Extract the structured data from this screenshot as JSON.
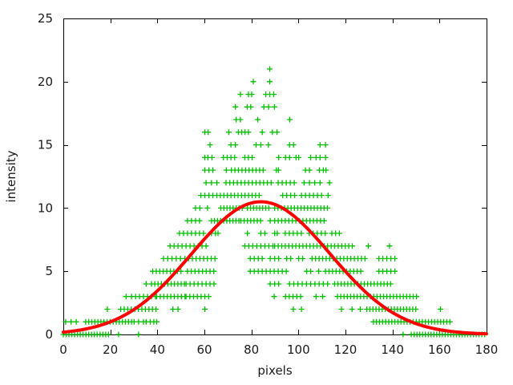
{
  "chart_data": {
    "type": "scatter",
    "title": "",
    "xlabel": "pixels",
    "ylabel": "intensity",
    "xlim": [
      0,
      180
    ],
    "ylim": [
      0,
      25
    ],
    "xticks": [
      0,
      20,
      40,
      60,
      80,
      100,
      120,
      140,
      160,
      180
    ],
    "yticks": [
      0,
      5,
      10,
      15,
      20,
      25
    ],
    "grid": false,
    "legend": "none",
    "background": "#ffffff",
    "border_color": "#000000",
    "tick_label_color": "#1a1a1a",
    "segment_format": "in x_segments a plain number is one marker x; [start,end,step] is an inclusive run of markers at that intensity",
    "series": [
      {
        "role": "scatter-points",
        "marker": "plus",
        "color": "#00c000",
        "rows": [
          {
            "y": 0,
            "x_segments": [
              [
                0,
                19.7,
                1.2
              ],
              23.5,
              32.0,
              144.5,
              [
                148.0,
                179.5,
                1.2
              ]
            ]
          },
          {
            "y": 1,
            "x_segments": [
              1.0,
              3.3,
              5.5,
              [
                9.5,
                29.0,
                1.3
              ],
              30.1,
              32.0,
              34.1,
              35.2,
              37.0,
              38.5,
              39.7,
              [
                131.9,
                164.8,
                1.3
              ]
            ]
          },
          {
            "y": 2,
            "x_segments": [
              18.7,
              [
                24.4,
                39.7,
                1.5
              ],
              46.6,
              48.8,
              60.2,
              97.8,
              101.3,
              118.3,
              122.8,
              126.3,
              [
                129.1,
                150.1,
                1.3
              ],
              160.4
            ]
          },
          {
            "y": 3,
            "x_segments": [
              26.7,
              [
                29.0,
                39.2,
                1.7
              ],
              [
                39.7,
                51.7,
                1.5
              ],
              [
                52.2,
                61.9,
                1.6
              ],
              89.7,
              [
                94.5,
                102.4,
                1.6
              ],
              107.5,
              110.3,
              [
                116.6,
                151.2,
                1.4
              ]
            ]
          },
          {
            "y": 4,
            "x_segments": [
              35.2,
              [
                37.5,
                51.7,
                1.4
              ],
              [
                52.2,
                64.1,
                1.7
              ],
              88.0,
              89.9,
              91.6,
              [
                96.2,
                113.8,
                1.8
              ],
              [
                115.4,
                140.4,
                1.4
              ]
            ]
          },
          {
            "y": 5,
            "x_segments": [
              [
                38.0,
                51.1,
                1.5
              ],
              [
                52.8,
                64.1,
                1.6
              ],
              [
                79.5,
                89.7,
                1.7
              ],
              [
                91.4,
                95.0,
                1.7
              ],
              103.5,
              105.2,
              108.6,
              [
                111.5,
                127.4,
                1.5
              ],
              [
                134.2,
                141.0,
                1.7
              ]
            ]
          },
          {
            "y": 6,
            "x_segments": [
              [
                42.6,
                50.0,
                1.8
              ],
              [
                51.7,
                65.8,
                1.6
              ],
              [
                79.5,
                84.6,
                1.7
              ],
              88.0,
              89.9,
              91.6,
              95.0,
              96.7,
              100.1,
              101.8,
              [
                105.8,
                129.7,
                1.5
              ],
              [
                134.2,
                141.0,
                1.7
              ]
            ]
          },
          {
            "y": 7,
            "x_segments": [
              [
                45.4,
                60.7,
                1.7
              ],
              [
                77.2,
                89.1,
                1.7
              ],
              [
                89.9,
                124.0,
                1.5
              ],
              129.7,
              138.7
            ]
          },
          {
            "y": 8,
            "x_segments": [
              [
                49.4,
                59.6,
                1.7
              ],
              63.0,
              64.7,
              65.8,
              78.3,
              84.0,
              85.7,
              89.9,
              91.0,
              [
                94.4,
                101.2,
                1.7
              ],
              [
                104.6,
                111.4,
                1.7
              ],
              [
                114.2,
                118.8,
                1.6
              ]
            ]
          },
          {
            "y": 9,
            "x_segments": [
              [
                52.8,
                57.9,
                1.7
              ],
              [
                63.0,
                74.9,
                1.3
              ],
              [
                75.5,
                84.0,
                1.4
              ],
              88.0,
              [
                89.9,
                111.0,
                1.5
              ]
            ]
          },
          {
            "y": 10,
            "x_segments": [
              56.2,
              58.1,
              61.3,
              [
                67.0,
                77.2,
                1.3
              ],
              [
                78.3,
                87.4,
                1.3
              ],
              [
                89.9,
                113.2,
                1.4
              ]
            ]
          },
          {
            "y": 11,
            "x_segments": [
              58.5,
              60.2,
              61.9,
              63.6,
              [
                65.3,
                84.6,
                1.5
              ],
              [
                93.3,
                98.4,
                1.7
              ],
              [
                101.3,
                109.8,
                1.7
              ],
              112.6
            ]
          },
          {
            "y": 12,
            "x_segments": [
              60.7,
              63.0,
              65.3,
              [
                69.2,
                89.7,
                1.6
              ],
              [
                91.4,
                98.2,
                1.7
              ],
              102.4,
              104.7,
              106.9,
              109.2,
              113.2
            ]
          },
          {
            "y": 13,
            "x_segments": [
              60.2,
              61.9,
              63.6,
              69.3,
              [
                71.5,
                86.3,
                1.5
              ],
              90.6,
              91.5,
              103.0,
              104.7,
              108.9,
              110.6,
              111.7
            ]
          },
          {
            "y": 14,
            "x_segments": [
              60.2,
              61.5,
              63.2,
              [
                68.1,
                74.4,
                1.6
              ],
              77.2,
              78.7,
              80.3,
              91.6,
              94.5,
              96.2,
              99.0,
              100.1,
              105.2,
              107.5,
              109.2,
              111.5
            ]
          },
          {
            "y": 15,
            "x_segments": [
              62.4,
              71.3,
              73.2,
              82.0,
              84.0,
              87.2,
              96.2,
              97.9,
              109.2,
              111.5
            ]
          },
          {
            "y": 16,
            "x_segments": [
              60.2,
              61.6,
              70.4,
              [
                74.5,
                80.0,
                1.4
              ],
              84.6,
              88.9,
              90.9
            ]
          },
          {
            "y": 17,
            "x_segments": [
              73.5,
              75.3,
              82.7,
              96.3
            ]
          },
          {
            "y": 18,
            "x_segments": [
              73.2,
              78.2,
              79.7,
              85.3,
              87.3,
              89.8
            ]
          },
          {
            "y": 19,
            "x_segments": [
              75.3,
              78.7,
              80.1,
              86.1,
              87.8,
              89.5
            ]
          },
          {
            "y": 20,
            "x_segments": [
              80.8,
              87.8
            ]
          },
          {
            "y": 21,
            "x_segments": [
              87.8
            ]
          }
        ]
      },
      {
        "role": "fit-curve",
        "color": "#ff0000",
        "line_width": 4,
        "model": "gaussian",
        "amplitude": 10.5,
        "mean": 84,
        "sigma": 29.5
      }
    ]
  }
}
